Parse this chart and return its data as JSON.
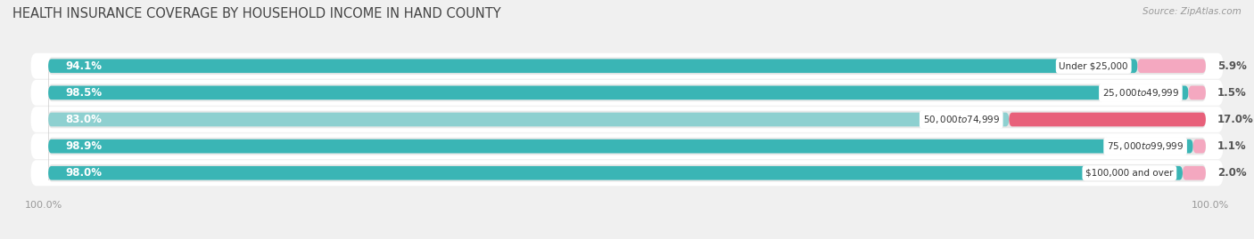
{
  "title": "HEALTH INSURANCE COVERAGE BY HOUSEHOLD INCOME IN HAND COUNTY",
  "source": "Source: ZipAtlas.com",
  "categories": [
    "Under $25,000",
    "$25,000 to $49,999",
    "$50,000 to $74,999",
    "$75,000 to $99,999",
    "$100,000 and over"
  ],
  "with_coverage": [
    94.1,
    98.5,
    83.0,
    98.9,
    98.0
  ],
  "without_coverage": [
    5.9,
    1.5,
    17.0,
    1.1,
    2.0
  ],
  "color_with": "#3ab5b5",
  "color_with_light": "#8ed0d0",
  "color_without_light": "#f4a8c0",
  "color_without_dark": "#e8607a",
  "track_color": "#e8e8e8",
  "row_bg_even": "#f0f0f0",
  "row_bg_odd": "#fafafa",
  "title_fontsize": 10.5,
  "label_fontsize": 8.5,
  "tick_fontsize": 8,
  "legend_fontsize": 8.5,
  "source_fontsize": 7.5
}
